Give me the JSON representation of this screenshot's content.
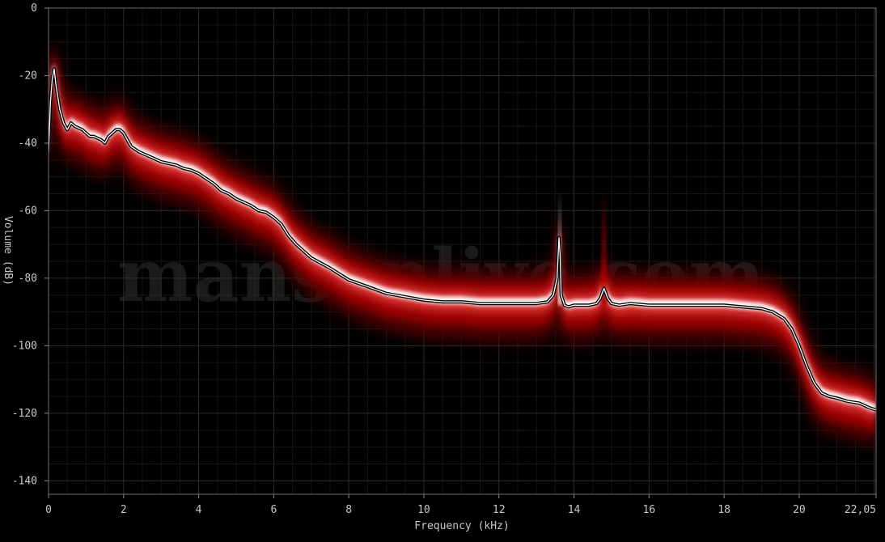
{
  "chart_data": {
    "type": "line",
    "xlabel": "Frequency (kHz)",
    "ylabel": "Volume (dB)",
    "xlim": [
      0,
      22.05
    ],
    "ylim": [
      -144,
      0
    ],
    "xticks": [
      {
        "value": 0,
        "label": "0"
      },
      {
        "value": 2,
        "label": "2"
      },
      {
        "value": 4,
        "label": "4"
      },
      {
        "value": 6,
        "label": "6"
      },
      {
        "value": 8,
        "label": "8"
      },
      {
        "value": 10,
        "label": "10"
      },
      {
        "value": 12,
        "label": "12"
      },
      {
        "value": 14,
        "label": "14"
      },
      {
        "value": 16,
        "label": "16"
      },
      {
        "value": 18,
        "label": "18"
      },
      {
        "value": 20,
        "label": "20"
      },
      {
        "value": 22.05,
        "label": "22,05"
      }
    ],
    "yticks": [
      {
        "value": 0,
        "label": "0"
      },
      {
        "value": -20,
        "label": "-20"
      },
      {
        "value": -40,
        "label": "-40"
      },
      {
        "value": -60,
        "label": "-60"
      },
      {
        "value": -80,
        "label": "-80"
      },
      {
        "value": -100,
        "label": "-100"
      },
      {
        "value": -120,
        "label": "-120"
      },
      {
        "value": -140,
        "label": "-140"
      }
    ],
    "grid": true,
    "watermark": "mansonlive.com",
    "series": [
      {
        "x": [
          0,
          0.05,
          0.1,
          0.15,
          0.2,
          0.3,
          0.4,
          0.5,
          0.6,
          0.7,
          0.8,
          0.9,
          1.0,
          1.1,
          1.2,
          1.3,
          1.4,
          1.5,
          1.6,
          1.7,
          1.8,
          1.9,
          2.0,
          2.1,
          2.2,
          2.4,
          2.6,
          2.8,
          3.0,
          3.2,
          3.4,
          3.6,
          3.8,
          4.0,
          4.2,
          4.4,
          4.6,
          4.8,
          5.0,
          5.2,
          5.4,
          5.6,
          5.8,
          6.0,
          6.2,
          6.4,
          6.6,
          6.8,
          7.0,
          7.5,
          8.0,
          8.5,
          9.0,
          9.5,
          10.0,
          10.5,
          11.0,
          11.5,
          12.0,
          12.5,
          13.0,
          13.3,
          13.45,
          13.55,
          13.6,
          13.63,
          13.66,
          13.75,
          13.85,
          14.0,
          14.2,
          14.4,
          14.6,
          14.7,
          14.8,
          14.9,
          15.0,
          15.2,
          15.5,
          16.0,
          16.5,
          17.0,
          17.5,
          18.0,
          18.5,
          19.0,
          19.3,
          19.6,
          19.8,
          20.0,
          20.2,
          20.4,
          20.6,
          20.8,
          21.0,
          21.3,
          21.6,
          21.9,
          22.05
        ],
        "y": [
          -43,
          -28,
          -21,
          -18,
          -23,
          -30,
          -34,
          -36,
          -34,
          -35,
          -35.5,
          -36,
          -37,
          -38,
          -38,
          -38.5,
          -39,
          -40,
          -38,
          -37,
          -36,
          -36,
          -37,
          -39,
          -41,
          -42.5,
          -43.5,
          -44.5,
          -45.5,
          -46,
          -46.5,
          -47.5,
          -48,
          -49,
          -50.5,
          -52,
          -54,
          -55,
          -56.5,
          -57.5,
          -58.5,
          -60,
          -60.5,
          -62,
          -64,
          -67.5,
          -70,
          -72,
          -74,
          -77,
          -80.5,
          -82.5,
          -84.5,
          -85.5,
          -86.5,
          -87,
          -87,
          -87.5,
          -87.5,
          -87.5,
          -87.5,
          -87,
          -85,
          -80,
          -68,
          -73,
          -85,
          -88,
          -88.5,
          -88,
          -88,
          -88,
          -87.5,
          -86,
          -83,
          -86,
          -87.5,
          -88,
          -87.5,
          -88,
          -88,
          -88,
          -88,
          -88,
          -88.5,
          -89,
          -90,
          -92,
          -95,
          -100,
          -106,
          -111,
          -114,
          -115,
          -115.5,
          -116.5,
          -117,
          -118.5,
          -119
        ]
      }
    ]
  }
}
